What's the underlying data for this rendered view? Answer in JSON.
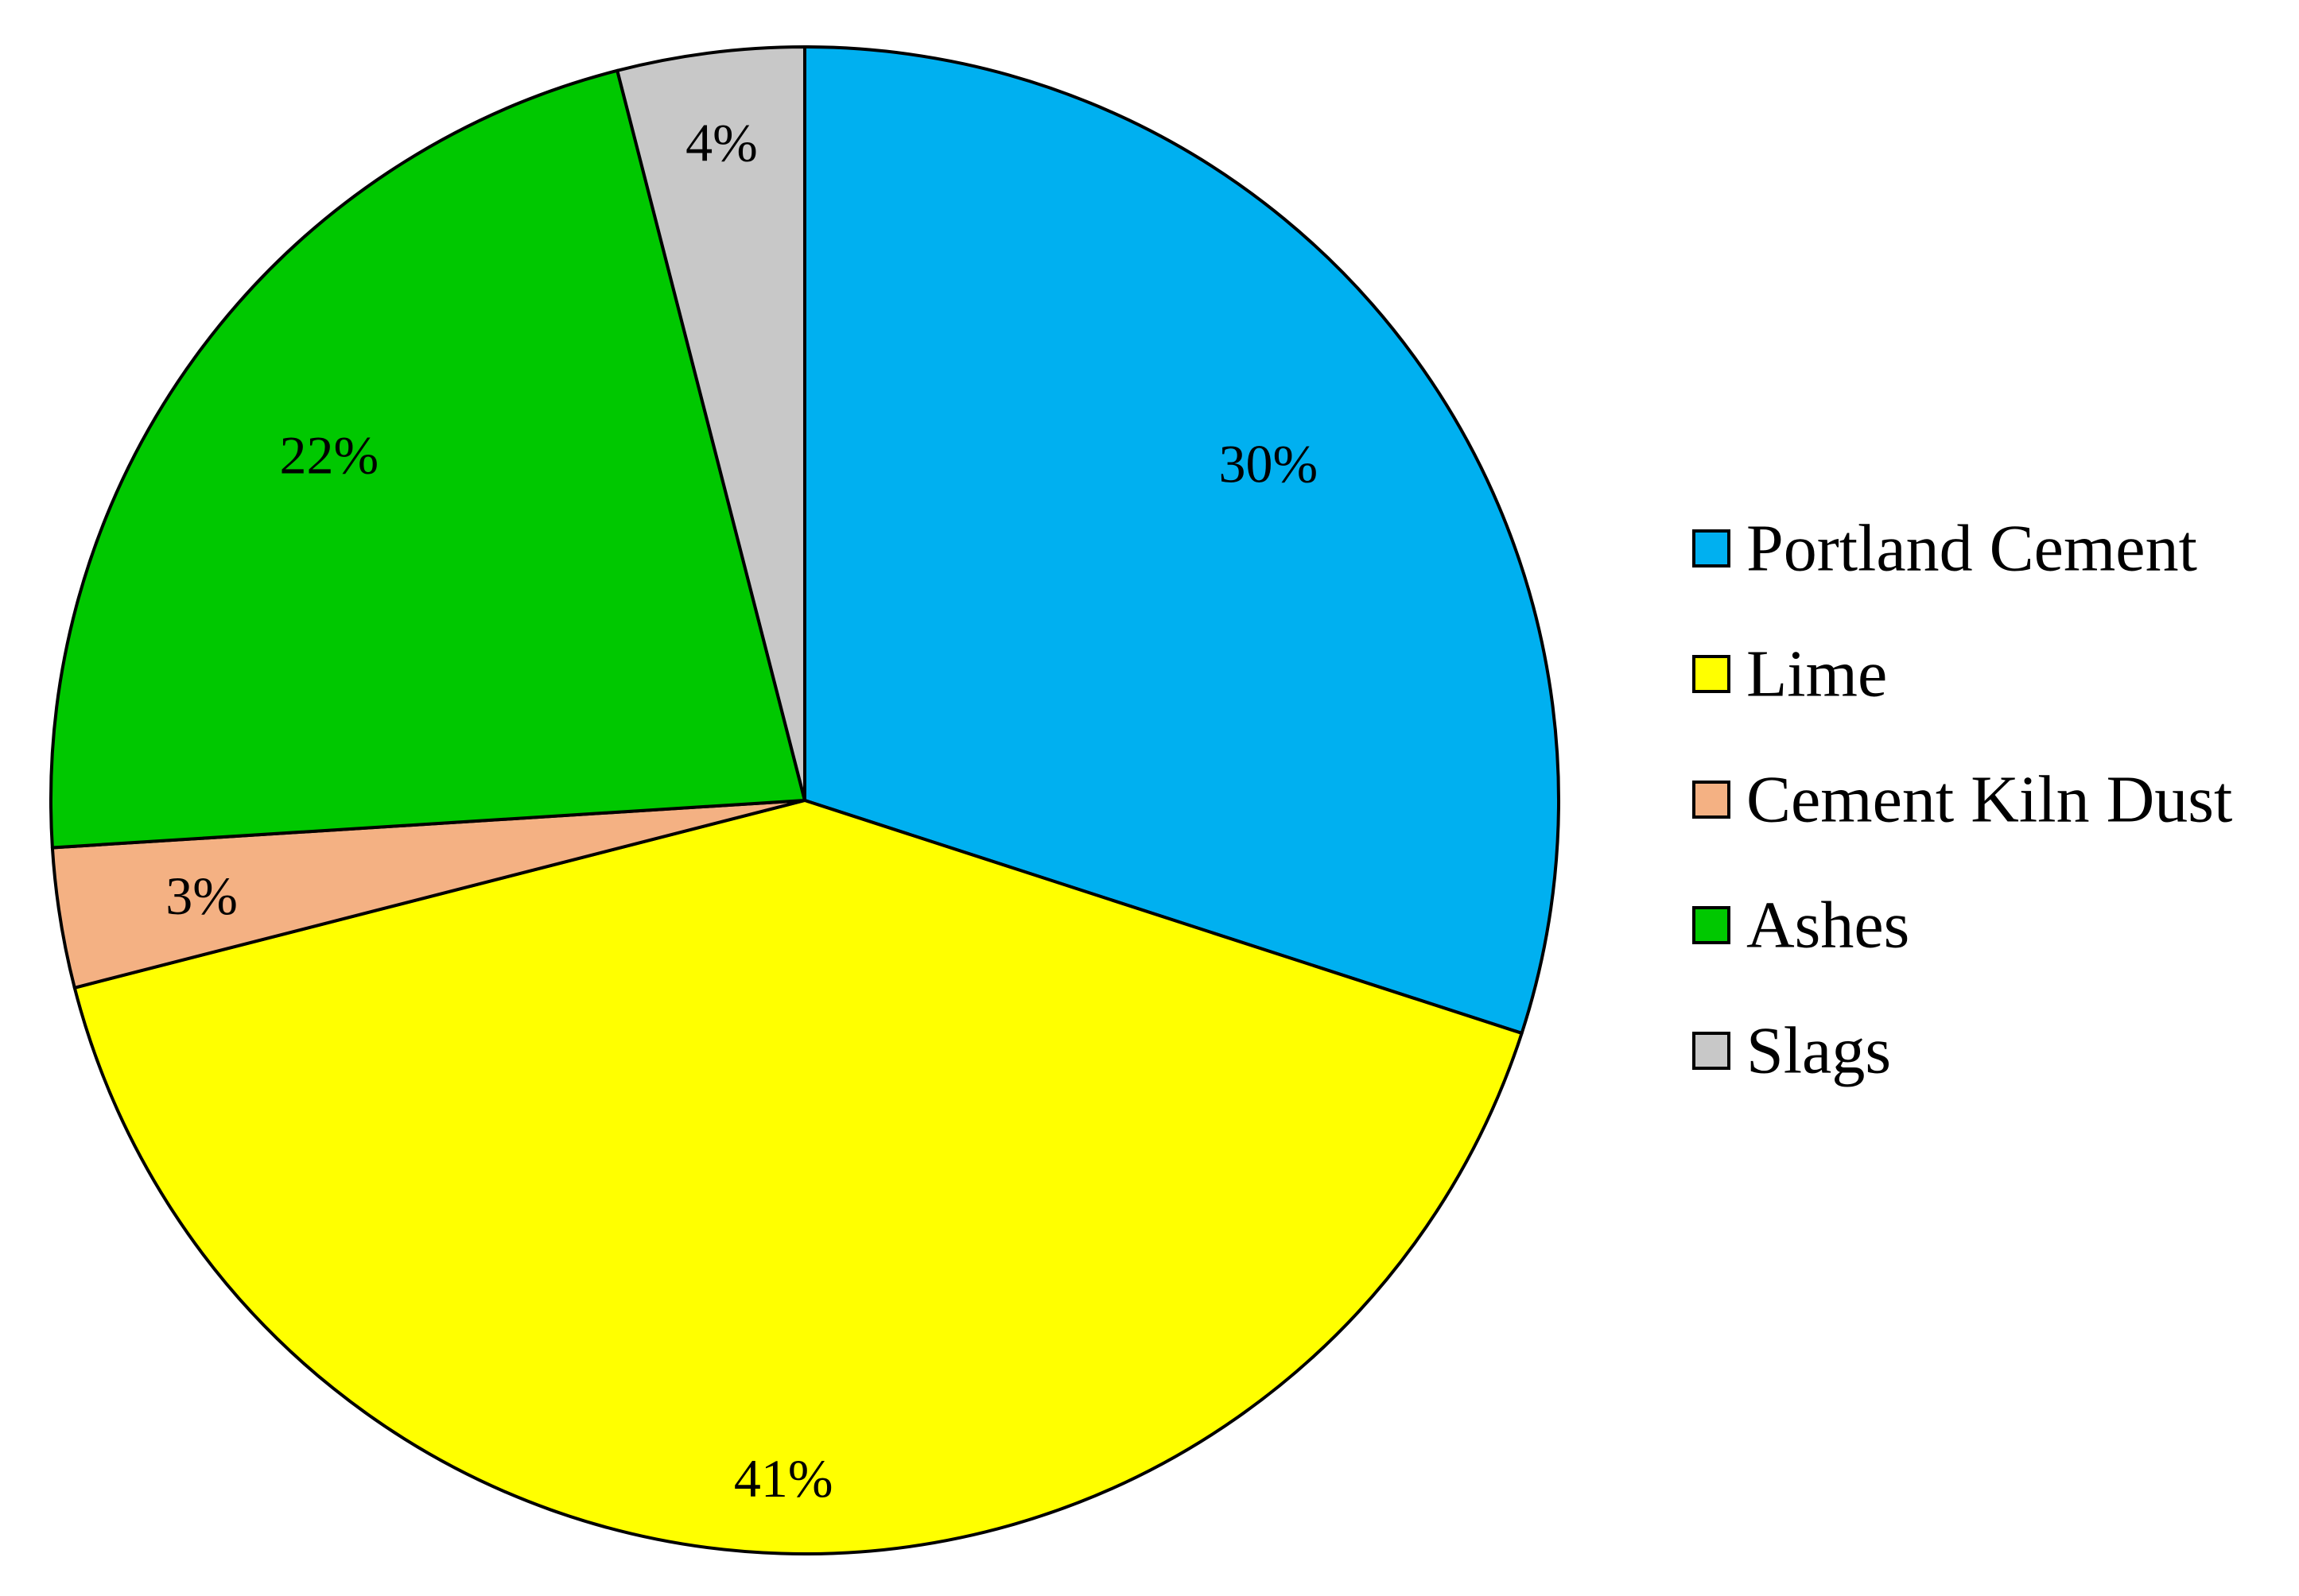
{
  "chart_data": {
    "type": "pie",
    "title": "",
    "start_angle_deg": 0,
    "direction": "clockwise",
    "legend_position": "right",
    "slices": [
      {
        "name": "Portland Cement",
        "value": 30,
        "label": "30%",
        "color": "#00B0F0"
      },
      {
        "name": "Lime",
        "value": 41,
        "label": "41%",
        "color": "#FFFF00"
      },
      {
        "name": "Cement Kiln Dust",
        "value": 3,
        "label": "3%",
        "color": "#F4B183"
      },
      {
        "name": "Ashes",
        "value": 22,
        "label": "22%",
        "color": "#00C800"
      },
      {
        "name": "Slags",
        "value": 4,
        "label": "4%",
        "color": "#C8C8C8"
      }
    ]
  }
}
